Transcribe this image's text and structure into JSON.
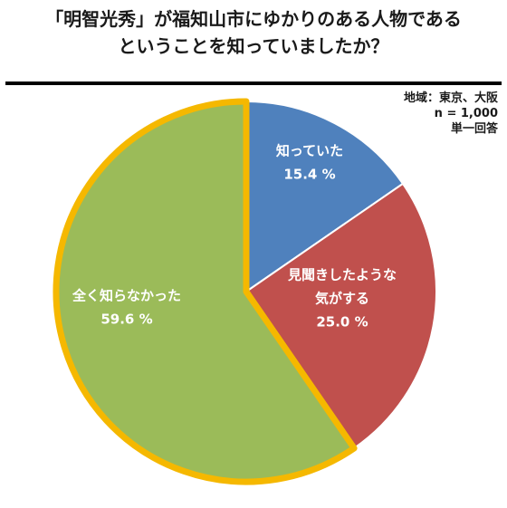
{
  "title": {
    "line1": "「明智光秀」が福知山市にゆかりのある人物である",
    "line2": "ということを知っていましたか？"
  },
  "meta": {
    "region": "地域：東京、大阪",
    "n": "n = 1,000",
    "answer_type": "単一回答"
  },
  "chart_data": {
    "type": "pie",
    "title": "「明智光秀」が福知山市にゆかりのある人物であるということを知っていましたか？",
    "slices": [
      {
        "label_lines": [
          "知っていた"
        ],
        "value": 15.4,
        "value_label": "15.4 %",
        "color": "#4f81bd",
        "highlighted": false
      },
      {
        "label_lines": [
          "見聞きしたような",
          "気がする"
        ],
        "value": 25.0,
        "value_label": "25.0 %",
        "color": "#c0504d",
        "highlighted": false
      },
      {
        "label_lines": [
          "全く知らなかった"
        ],
        "value": 59.6,
        "value_label": "59.6 %",
        "color": "#9bbb59",
        "highlighted": true
      }
    ],
    "start_angle": "12 o'clock",
    "direction": "clockwise",
    "highlight_color": "#f5b800",
    "slice_border_color": "#ffffff"
  }
}
